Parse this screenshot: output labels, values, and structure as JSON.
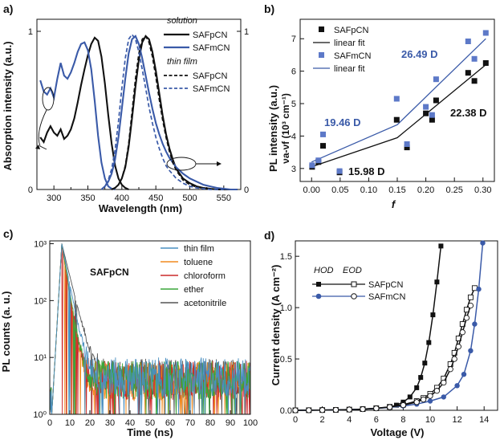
{
  "colors": {
    "black": "#111111",
    "blue": "#3a5aa8",
    "blue_light": "#6f86c8",
    "steelblue": "#4a8fc0",
    "orange": "#f28a1e",
    "red": "#cc2a2a",
    "green": "#3aa63a",
    "gray": "#555555"
  },
  "panels": {
    "a": {
      "label": "a)"
    },
    "b": {
      "label": "b)"
    },
    "c": {
      "label": "c)"
    },
    "d": {
      "label": "d)"
    }
  },
  "chart_data": [
    {
      "id": "a",
      "type": "line",
      "xlabel": "Wavelength (nm)",
      "ylabel": "Absorption intensity (a.u.)",
      "xlim": [
        275,
        575
      ],
      "x_ticks": [
        "300",
        "350",
        "400",
        "450",
        "500",
        "550"
      ],
      "left_ticks": [
        "0",
        "1"
      ],
      "right_ticks": [
        "0",
        "1"
      ],
      "legend_groups": [
        "solution",
        "thin film"
      ],
      "series": [
        {
          "name": "SAFpCN",
          "group": "solution",
          "kind": "absorption",
          "style": "solid",
          "color": "black",
          "x": [
            280,
            285,
            290,
            295,
            300,
            305,
            310,
            315,
            320,
            325,
            330,
            335,
            340,
            345,
            350,
            355,
            360,
            365,
            370,
            375,
            380,
            385,
            390,
            395,
            400,
            405,
            410
          ],
          "y": [
            0.33,
            0.3,
            0.36,
            0.4,
            0.36,
            0.34,
            0.38,
            0.32,
            0.34,
            0.38,
            0.45,
            0.55,
            0.66,
            0.76,
            0.85,
            0.92,
            0.96,
            0.94,
            0.84,
            0.67,
            0.47,
            0.29,
            0.15,
            0.07,
            0.03,
            0.01,
            0.0
          ]
        },
        {
          "name": "SAFmCN",
          "group": "solution",
          "kind": "absorption",
          "style": "solid",
          "color": "blue",
          "x": [
            280,
            285,
            290,
            295,
            300,
            305,
            310,
            315,
            320,
            325,
            330,
            335,
            340,
            345,
            350,
            355,
            360,
            365,
            370,
            375,
            380,
            385,
            390
          ],
          "y": [
            0.69,
            0.62,
            0.6,
            0.64,
            0.58,
            0.7,
            0.8,
            0.72,
            0.7,
            0.74,
            0.8,
            0.87,
            0.92,
            0.93,
            0.88,
            0.76,
            0.56,
            0.34,
            0.17,
            0.07,
            0.02,
            0.005,
            0.0
          ]
        },
        {
          "name": "SAFpCN",
          "group": "solution",
          "kind": "emission",
          "style": "solid",
          "color": "black",
          "x": [
            385,
            390,
            395,
            400,
            405,
            410,
            415,
            420,
            425,
            430,
            435,
            440,
            445,
            450,
            455,
            460,
            465,
            470,
            475,
            480,
            490,
            500,
            510,
            520,
            530,
            540,
            550,
            560,
            570
          ],
          "y": [
            0.0,
            0.01,
            0.03,
            0.07,
            0.14,
            0.27,
            0.45,
            0.65,
            0.82,
            0.93,
            0.97,
            0.95,
            0.87,
            0.75,
            0.61,
            0.47,
            0.35,
            0.26,
            0.19,
            0.13,
            0.07,
            0.04,
            0.02,
            0.01,
            0.005,
            0.0,
            0.0,
            0.0,
            0.0
          ]
        },
        {
          "name": "SAFmCN",
          "group": "solution",
          "kind": "emission",
          "style": "solid",
          "color": "blue",
          "x": [
            370,
            375,
            380,
            385,
            390,
            395,
            400,
            405,
            410,
            415,
            420,
            425,
            430,
            435,
            440,
            445,
            450,
            455,
            460,
            465,
            470,
            480,
            490,
            500,
            510,
            520,
            530,
            540,
            550,
            560,
            570
          ],
          "y": [
            0.0,
            0.02,
            0.05,
            0.1,
            0.19,
            0.33,
            0.51,
            0.7,
            0.86,
            0.95,
            0.97,
            0.92,
            0.83,
            0.72,
            0.61,
            0.51,
            0.42,
            0.35,
            0.29,
            0.24,
            0.2,
            0.14,
            0.1,
            0.07,
            0.05,
            0.03,
            0.02,
            0.01,
            0.005,
            0.0,
            0.0
          ]
        },
        {
          "name": "SAFpCN",
          "group": "thin film",
          "kind": "emission",
          "style": "dashed",
          "color": "black",
          "x": [
            385,
            390,
            395,
            400,
            405,
            410,
            415,
            420,
            425,
            430,
            435,
            440,
            445,
            450,
            455,
            460,
            465,
            470,
            475,
            480,
            490,
            500,
            510,
            520,
            530,
            540,
            550
          ],
          "y": [
            0.0,
            0.01,
            0.03,
            0.07,
            0.15,
            0.29,
            0.49,
            0.7,
            0.86,
            0.95,
            0.97,
            0.93,
            0.84,
            0.71,
            0.57,
            0.44,
            0.33,
            0.24,
            0.17,
            0.12,
            0.06,
            0.03,
            0.015,
            0.007,
            0.003,
            0.0,
            0.0
          ]
        },
        {
          "name": "SAFmCN",
          "group": "thin film",
          "kind": "emission",
          "style": "dashed",
          "color": "blue",
          "x": [
            370,
            375,
            380,
            385,
            390,
            395,
            400,
            405,
            410,
            415,
            420,
            425,
            430,
            435,
            440,
            445,
            450,
            455,
            460,
            465,
            470,
            480,
            490,
            500,
            510,
            520,
            530,
            540,
            550
          ],
          "y": [
            0.0,
            0.02,
            0.06,
            0.13,
            0.25,
            0.43,
            0.64,
            0.83,
            0.95,
            0.98,
            0.95,
            0.87,
            0.76,
            0.64,
            0.52,
            0.42,
            0.33,
            0.26,
            0.2,
            0.15,
            0.12,
            0.07,
            0.04,
            0.02,
            0.01,
            0.005,
            0.0,
            0.0,
            0.0
          ]
        }
      ]
    },
    {
      "id": "b",
      "type": "scatter",
      "xlabel": "f",
      "ylabel_main": "PL intensity (a.u.)",
      "ylabel_sub": "νa-νf (10³ cm⁻¹)",
      "xlim": [
        -0.02,
        0.32
      ],
      "ylim": [
        2.6,
        7.6
      ],
      "x_ticks": [
        "0.00",
        "0.05",
        "0.10",
        "0.15",
        "0.20",
        "0.25",
        "0.30"
      ],
      "y_ticks": [
        "3",
        "4",
        "5",
        "6",
        "7"
      ],
      "series": [
        {
          "name": "SAFpCN",
          "marker": "square",
          "color": "black",
          "x": [
            0.001,
            0.012,
            0.02,
            0.049,
            0.149,
            0.167,
            0.2,
            0.211,
            0.218,
            0.274,
            0.285,
            0.305
          ],
          "y": [
            3.05,
            3.2,
            3.7,
            2.88,
            4.5,
            3.65,
            4.7,
            4.5,
            5.1,
            5.95,
            5.7,
            6.25
          ]
        },
        {
          "name": "SAFmCN",
          "marker": "square",
          "color": "blue_light",
          "x": [
            0.001,
            0.012,
            0.02,
            0.049,
            0.149,
            0.167,
            0.2,
            0.211,
            0.218,
            0.274,
            0.285,
            0.305
          ],
          "y": [
            3.1,
            3.25,
            4.05,
            2.92,
            5.15,
            3.75,
            4.9,
            4.65,
            5.75,
            6.92,
            6.38,
            7.18
          ]
        },
        {
          "name": "linear fit",
          "fit_for": "SAFpCN",
          "color": "black",
          "x": [
            0.0,
            0.15,
            0.15,
            0.305
          ],
          "y": [
            3.05,
            3.95,
            3.95,
            6.2
          ]
        },
        {
          "name": "linear fit",
          "fit_for": "SAFmCN",
          "color": "blue",
          "x": [
            0.0,
            0.15,
            0.15,
            0.305
          ],
          "y": [
            3.2,
            4.35,
            4.35,
            7.0
          ]
        }
      ],
      "annotations": [
        {
          "text": "19.46 D",
          "color": "blue"
        },
        {
          "text": "26.49 D",
          "color": "blue"
        },
        {
          "text": "22.38 D",
          "color": "black"
        },
        {
          "text": "15.98 D",
          "color": "black"
        }
      ]
    },
    {
      "id": "c",
      "type": "line",
      "xlabel": "Time (ns)",
      "ylabel": "PL counts (a. u.)",
      "annotation": "SAFpCN",
      "xlim": [
        0,
        100
      ],
      "ylim_log10": [
        0,
        3.05
      ],
      "x_ticks": [
        "0",
        "10",
        "20",
        "30",
        "40",
        "50",
        "60",
        "70",
        "80",
        "90",
        "100"
      ],
      "y_ticks": [
        "10⁰",
        "10¹",
        "10²",
        "10³"
      ],
      "decay": {
        "peak_time_ns": 6,
        "peak_counts": 1000,
        "rise_start_ns": 1
      },
      "series": [
        {
          "name": "thin film",
          "color": "steelblue",
          "tau_ns": 2.4,
          "noise_floor": 4.5
        },
        {
          "name": "toluene",
          "color": "orange",
          "tau_ns": 1.9,
          "noise_floor": 3.8
        },
        {
          "name": "chloroform",
          "color": "red",
          "tau_ns": 2.0,
          "noise_floor": 4.0
        },
        {
          "name": "ether",
          "color": "green",
          "tau_ns": 2.0,
          "noise_floor": 4.0
        },
        {
          "name": "acetonitrile",
          "color": "gray",
          "tau_ns": 3.0,
          "noise_floor": 4.3
        }
      ]
    },
    {
      "id": "d",
      "type": "line",
      "xlabel": "Voltage (V)",
      "ylabel": "Current density (A cm⁻²)",
      "xlim": [
        0,
        15
      ],
      "ylim": [
        0,
        1.65
      ],
      "x_ticks": [
        "0",
        "2",
        "4",
        "6",
        "8",
        "10",
        "12",
        "14"
      ],
      "y_ticks": [
        "0.0",
        "0.5",
        "1.0",
        "1.5"
      ],
      "legend_header": [
        "HOD",
        "EOD"
      ],
      "series": [
        {
          "name": "SAFpCN",
          "device": "HOD",
          "marker": "filled-square",
          "color": "black",
          "x": [
            0,
            1,
            2,
            3,
            4,
            5,
            6,
            7,
            7.5,
            8,
            8.5,
            9,
            9.3,
            9.6,
            9.9,
            10.2,
            10.5,
            10.8
          ],
          "y": [
            0,
            0.001,
            0.002,
            0.004,
            0.007,
            0.011,
            0.018,
            0.032,
            0.05,
            0.08,
            0.13,
            0.22,
            0.32,
            0.46,
            0.66,
            0.93,
            1.25,
            1.6
          ]
        },
        {
          "name": "SAFpCN",
          "device": "EOD",
          "marker": "open-square",
          "color": "black",
          "x": [
            0,
            1,
            2,
            3,
            4,
            5,
            6,
            7,
            8,
            9,
            9.5,
            10,
            10.5,
            11,
            11.5,
            11.8,
            12.1,
            12.4,
            12.7,
            13.0,
            13.3
          ],
          "y": [
            0,
            0.001,
            0.002,
            0.004,
            0.007,
            0.012,
            0.02,
            0.034,
            0.055,
            0.09,
            0.12,
            0.16,
            0.22,
            0.31,
            0.45,
            0.56,
            0.7,
            0.84,
            0.98,
            1.1,
            1.19
          ]
        },
        {
          "name": "SAFmCN",
          "device": "HOD",
          "marker": "filled-circle",
          "color": "blue",
          "x": [
            0,
            1,
            2,
            3,
            4,
            5,
            6,
            7,
            8,
            9,
            10,
            11,
            12,
            12.5,
            13,
            13.3,
            13.6,
            13.9
          ],
          "y": [
            0,
            0.001,
            0.002,
            0.004,
            0.007,
            0.011,
            0.018,
            0.028,
            0.042,
            0.06,
            0.09,
            0.13,
            0.24,
            0.35,
            0.58,
            0.84,
            1.18,
            1.63
          ]
        },
        {
          "name": "SAFmCN",
          "device": "EOD",
          "marker": "open-circle",
          "color": "black",
          "x": [
            0,
            1,
            2,
            3,
            4,
            5,
            6,
            7,
            8,
            9,
            9.5,
            10,
            10.5,
            11,
            11.5,
            11.8,
            12.1,
            12.4,
            12.7,
            13.0
          ],
          "y": [
            0,
            0.001,
            0.002,
            0.004,
            0.007,
            0.011,
            0.019,
            0.031,
            0.05,
            0.08,
            0.105,
            0.14,
            0.19,
            0.27,
            0.4,
            0.5,
            0.62,
            0.76,
            0.9,
            1.02
          ]
        }
      ]
    }
  ]
}
